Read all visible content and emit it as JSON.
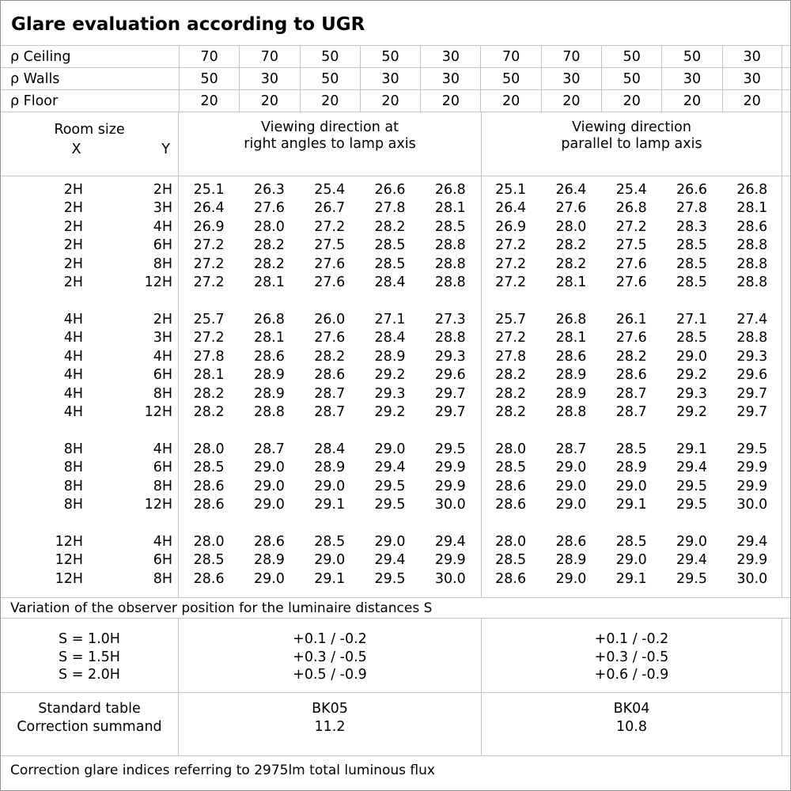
{
  "window": {
    "title": "Glare evaluation according to UGR"
  },
  "reflectance_rows": [
    {
      "label": "ρ Ceiling",
      "values": [
        "70",
        "70",
        "50",
        "50",
        "30",
        "70",
        "70",
        "50",
        "50",
        "30"
      ]
    },
    {
      "label": "ρ Walls",
      "values": [
        "50",
        "30",
        "50",
        "30",
        "30",
        "50",
        "30",
        "50",
        "30",
        "30"
      ]
    },
    {
      "label": "ρ Floor",
      "values": [
        "20",
        "20",
        "20",
        "20",
        "20",
        "20",
        "20",
        "20",
        "20",
        "20"
      ]
    }
  ],
  "table_header": {
    "room_size": "Room size",
    "x": "X",
    "y": "Y",
    "right_angles_line1": "Viewing direction at",
    "right_angles_line2": "right angles to lamp axis",
    "parallel_line1": "Viewing direction",
    "parallel_line2": "parallel to lamp axis"
  },
  "ugr_groups": [
    {
      "rows": [
        {
          "x": "2H",
          "y": "2H",
          "right_angles": [
            "25.1",
            "26.3",
            "25.4",
            "26.6",
            "26.8"
          ],
          "parallel": [
            "25.1",
            "26.4",
            "25.4",
            "26.6",
            "26.8"
          ]
        },
        {
          "x": "2H",
          "y": "3H",
          "right_angles": [
            "26.4",
            "27.6",
            "26.7",
            "27.8",
            "28.1"
          ],
          "parallel": [
            "26.4",
            "27.6",
            "26.8",
            "27.8",
            "28.1"
          ]
        },
        {
          "x": "2H",
          "y": "4H",
          "right_angles": [
            "26.9",
            "28.0",
            "27.2",
            "28.2",
            "28.5"
          ],
          "parallel": [
            "26.9",
            "28.0",
            "27.2",
            "28.3",
            "28.6"
          ]
        },
        {
          "x": "2H",
          "y": "6H",
          "right_angles": [
            "27.2",
            "28.2",
            "27.5",
            "28.5",
            "28.8"
          ],
          "parallel": [
            "27.2",
            "28.2",
            "27.5",
            "28.5",
            "28.8"
          ]
        },
        {
          "x": "2H",
          "y": "8H",
          "right_angles": [
            "27.2",
            "28.2",
            "27.6",
            "28.5",
            "28.8"
          ],
          "parallel": [
            "27.2",
            "28.2",
            "27.6",
            "28.5",
            "28.8"
          ]
        },
        {
          "x": "2H",
          "y": "12H",
          "right_angles": [
            "27.2",
            "28.1",
            "27.6",
            "28.4",
            "28.8"
          ],
          "parallel": [
            "27.2",
            "28.1",
            "27.6",
            "28.5",
            "28.8"
          ]
        }
      ]
    },
    {
      "rows": [
        {
          "x": "4H",
          "y": "2H",
          "right_angles": [
            "25.7",
            "26.8",
            "26.0",
            "27.1",
            "27.3"
          ],
          "parallel": [
            "25.7",
            "26.8",
            "26.1",
            "27.1",
            "27.4"
          ]
        },
        {
          "x": "4H",
          "y": "3H",
          "right_angles": [
            "27.2",
            "28.1",
            "27.6",
            "28.4",
            "28.8"
          ],
          "parallel": [
            "27.2",
            "28.1",
            "27.6",
            "28.5",
            "28.8"
          ]
        },
        {
          "x": "4H",
          "y": "4H",
          "right_angles": [
            "27.8",
            "28.6",
            "28.2",
            "28.9",
            "29.3"
          ],
          "parallel": [
            "27.8",
            "28.6",
            "28.2",
            "29.0",
            "29.3"
          ]
        },
        {
          "x": "4H",
          "y": "6H",
          "right_angles": [
            "28.1",
            "28.9",
            "28.6",
            "29.2",
            "29.6"
          ],
          "parallel": [
            "28.2",
            "28.9",
            "28.6",
            "29.2",
            "29.6"
          ]
        },
        {
          "x": "4H",
          "y": "8H",
          "right_angles": [
            "28.2",
            "28.9",
            "28.7",
            "29.3",
            "29.7"
          ],
          "parallel": [
            "28.2",
            "28.9",
            "28.7",
            "29.3",
            "29.7"
          ]
        },
        {
          "x": "4H",
          "y": "12H",
          "right_angles": [
            "28.2",
            "28.8",
            "28.7",
            "29.2",
            "29.7"
          ],
          "parallel": [
            "28.2",
            "28.8",
            "28.7",
            "29.2",
            "29.7"
          ]
        }
      ]
    },
    {
      "rows": [
        {
          "x": "8H",
          "y": "4H",
          "right_angles": [
            "28.0",
            "28.7",
            "28.4",
            "29.0",
            "29.5"
          ],
          "parallel": [
            "28.0",
            "28.7",
            "28.5",
            "29.1",
            "29.5"
          ]
        },
        {
          "x": "8H",
          "y": "6H",
          "right_angles": [
            "28.5",
            "29.0",
            "28.9",
            "29.4",
            "29.9"
          ],
          "parallel": [
            "28.5",
            "29.0",
            "28.9",
            "29.4",
            "29.9"
          ]
        },
        {
          "x": "8H",
          "y": "8H",
          "right_angles": [
            "28.6",
            "29.0",
            "29.0",
            "29.5",
            "29.9"
          ],
          "parallel": [
            "28.6",
            "29.0",
            "29.0",
            "29.5",
            "29.9"
          ]
        },
        {
          "x": "8H",
          "y": "12H",
          "right_angles": [
            "28.6",
            "29.0",
            "29.1",
            "29.5",
            "30.0"
          ],
          "parallel": [
            "28.6",
            "29.0",
            "29.1",
            "29.5",
            "30.0"
          ]
        }
      ]
    },
    {
      "rows": [
        {
          "x": "12H",
          "y": "4H",
          "right_angles": [
            "28.0",
            "28.6",
            "28.5",
            "29.0",
            "29.4"
          ],
          "parallel": [
            "28.0",
            "28.6",
            "28.5",
            "29.0",
            "29.4"
          ]
        },
        {
          "x": "12H",
          "y": "6H",
          "right_angles": [
            "28.5",
            "28.9",
            "29.0",
            "29.4",
            "29.9"
          ],
          "parallel": [
            "28.5",
            "28.9",
            "29.0",
            "29.4",
            "29.9"
          ]
        },
        {
          "x": "12H",
          "y": "8H",
          "right_angles": [
            "28.6",
            "29.0",
            "29.1",
            "29.5",
            "30.0"
          ],
          "parallel": [
            "28.6",
            "29.0",
            "29.1",
            "29.5",
            "30.0"
          ]
        }
      ]
    }
  ],
  "variation": {
    "note": "Variation of the observer position for the luminaire distances S",
    "rows": [
      {
        "label": "S = 1.0H",
        "right_angles": "+0.1 / -0.2",
        "parallel": "+0.1 / -0.2"
      },
      {
        "label": "S = 1.5H",
        "right_angles": "+0.3 / -0.5",
        "parallel": "+0.3 / -0.5"
      },
      {
        "label": "S = 2.0H",
        "right_angles": "+0.5 / -0.9",
        "parallel": "+0.6 / -0.9"
      }
    ]
  },
  "standard": {
    "table_label": "Standard table",
    "summand_label": "Correction summand",
    "right_angles_table": "BK05",
    "right_angles_summand": "11.2",
    "parallel_table": "BK04",
    "parallel_summand": "10.8"
  },
  "footer": {
    "note": "Correction glare indices referring to 2975lm total luminous flux"
  },
  "colors": {
    "background": "#ffffff",
    "text": "#000000",
    "grid_line": "#c4c4c4",
    "frame": "#919191"
  }
}
